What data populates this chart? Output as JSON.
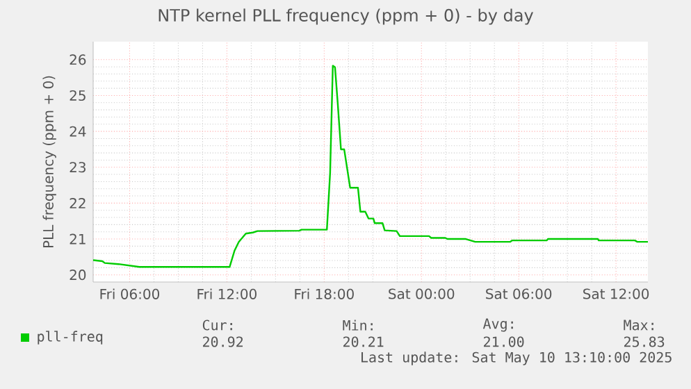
{
  "chart_data": {
    "type": "line",
    "title": "NTP kernel PLL frequency (ppm + 0) - by day",
    "ylabel": "PLL frequency (ppm + 0)",
    "series": [
      {
        "name": "pll-freq",
        "color": "#00cc00",
        "x": [
          "2025-05-09T03:45",
          "2025-05-09T04:19",
          "2025-05-09T04:28",
          "2025-05-09T05:19",
          "2025-05-09T06:36",
          "2025-05-09T12:10",
          "2025-05-09T12:28",
          "2025-05-09T12:44",
          "2025-05-09T13:10",
          "2025-05-09T13:36",
          "2025-05-09T13:53",
          "2025-05-09T16:28",
          "2025-05-09T16:36",
          "2025-05-09T18:10",
          "2025-05-09T18:22",
          "2025-05-09T18:32",
          "2025-05-09T18:40",
          "2025-05-09T18:50",
          "2025-05-09T19:02",
          "2025-05-09T19:14",
          "2025-05-09T19:36",
          "2025-05-09T20:05",
          "2025-05-09T20:14",
          "2025-05-09T20:32",
          "2025-05-09T20:44",
          "2025-05-09T21:02",
          "2025-05-09T21:07",
          "2025-05-09T21:36",
          "2025-05-09T21:44",
          "2025-05-09T22:28",
          "2025-05-09T22:40",
          "2025-05-10T00:28",
          "2025-05-10T00:36",
          "2025-05-10T01:28",
          "2025-05-10T01:36",
          "2025-05-10T02:44",
          "2025-05-10T03:19",
          "2025-05-10T05:28",
          "2025-05-10T05:36",
          "2025-05-10T07:44",
          "2025-05-10T07:48",
          "2025-05-10T10:53",
          "2025-05-10T10:56",
          "2025-05-10T13:10",
          "2025-05-10T13:19",
          "2025-05-10T13:58"
        ],
        "values": [
          20.41,
          20.38,
          20.33,
          20.3,
          20.22,
          20.22,
          20.67,
          20.92,
          21.15,
          21.18,
          21.22,
          21.23,
          21.26,
          21.26,
          22.85,
          25.83,
          25.79,
          24.8,
          23.5,
          23.5,
          22.43,
          22.43,
          21.76,
          21.76,
          21.57,
          21.57,
          21.44,
          21.44,
          21.24,
          21.22,
          21.08,
          21.08,
          21.03,
          21.03,
          21.0,
          21.0,
          20.92,
          20.92,
          20.96,
          20.96,
          21.0,
          21.0,
          20.96,
          20.96,
          20.92,
          20.92
        ]
      }
    ],
    "xlim": [
      "2025-05-09T03:45",
      "2025-05-10T13:58"
    ],
    "ylim": [
      19.8,
      26.5
    ],
    "xticks": [
      {
        "value": "2025-05-09T06:00",
        "label": "Fri 06:00"
      },
      {
        "value": "2025-05-09T12:00",
        "label": "Fri 12:00"
      },
      {
        "value": "2025-05-09T18:00",
        "label": "Fri 18:00"
      },
      {
        "value": "2025-05-10T00:00",
        "label": "Sat 00:00"
      },
      {
        "value": "2025-05-10T06:00",
        "label": "Sat 06:00"
      },
      {
        "value": "2025-05-10T12:00",
        "label": "Sat 12:00"
      }
    ],
    "yticks": [
      20,
      21,
      22,
      23,
      24,
      25,
      26
    ],
    "grid": true,
    "legend": "bottom left",
    "annotations": [
      "Cur:",
      "Min:",
      "Avg:",
      "Max:",
      "20.92",
      "20.21",
      "21.00",
      "25.83",
      "Last update: Sat May 10 13:10:00 2025"
    ]
  }
}
